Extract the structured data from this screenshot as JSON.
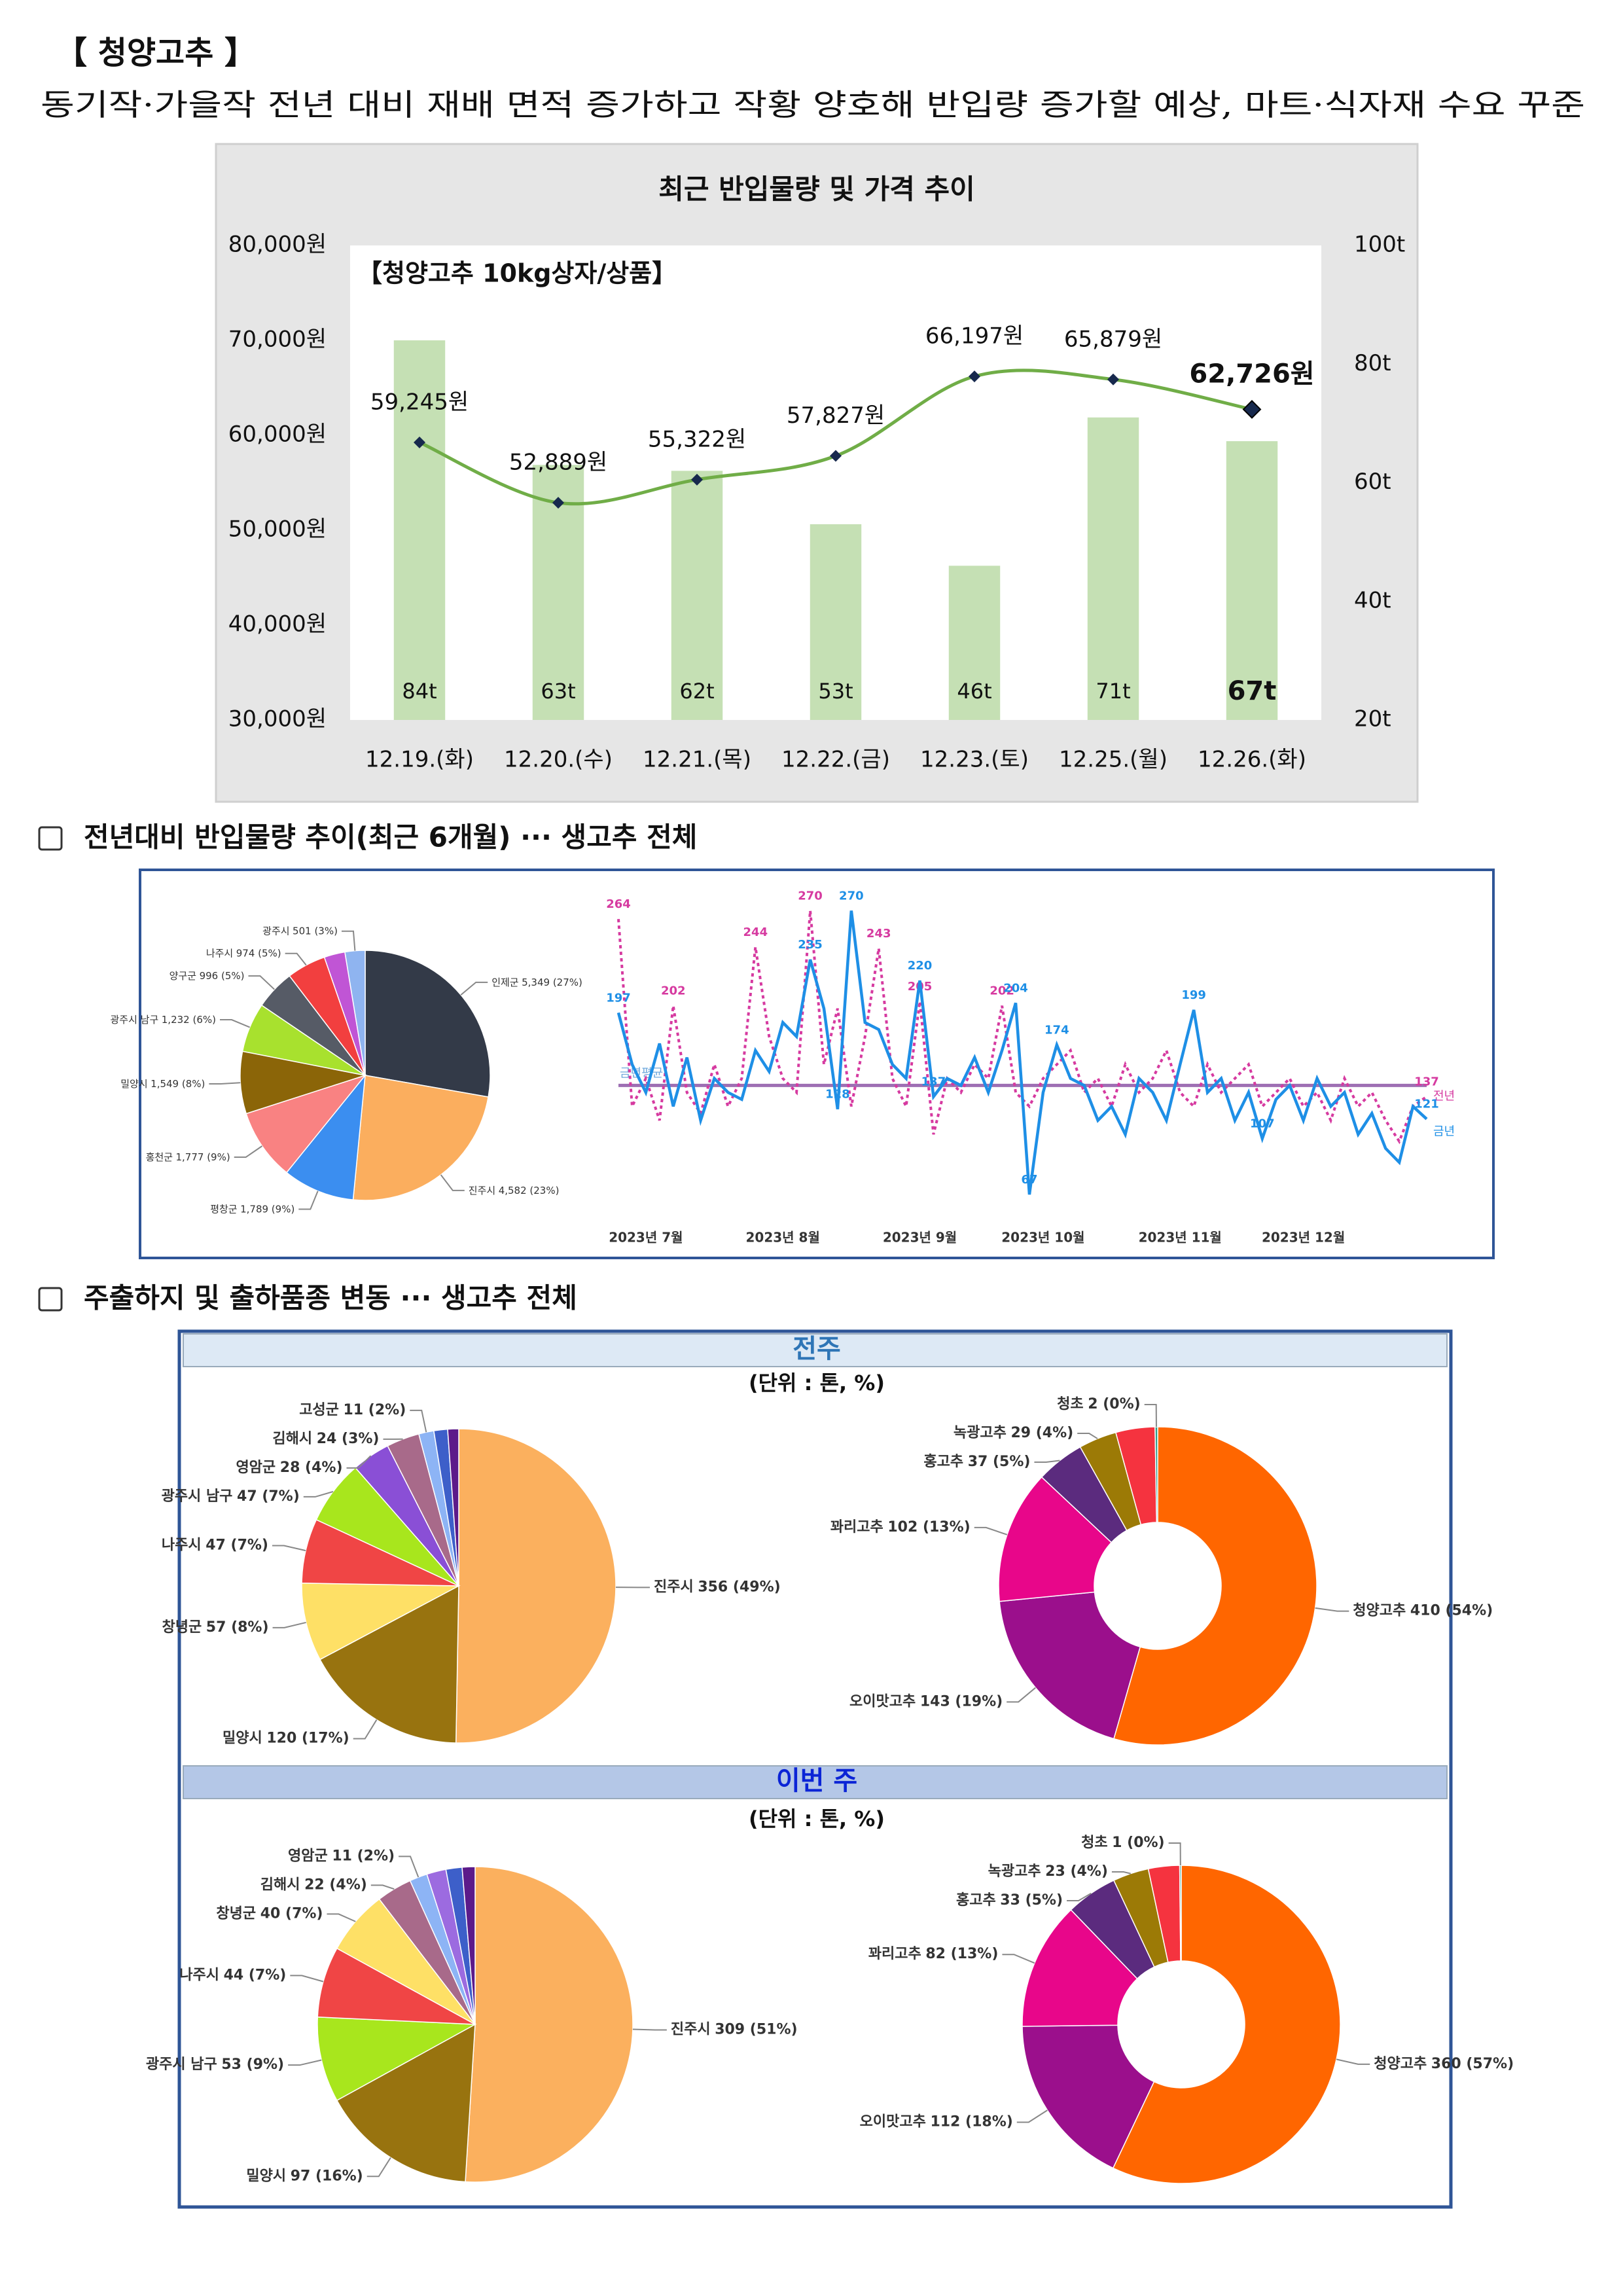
{
  "title": "【 청양고추 】",
  "subtitle": "동기작·가을작 전년 대비 재배 면적 증가하고 작황 양호해 반입량 증가할 예상, 마트·식자재 수요 꾸준",
  "sections": [
    "전년대비 반입물량 추이(최근 6개월) ··· 생고추 전체",
    "주출하지 및 출하품종 변동 ··· 생고추 전체"
  ],
  "panels": [
    {
      "heading": "전주",
      "unit": "(단위 : 톤, %)"
    },
    {
      "heading": "이번 주",
      "unit": "(단위 : 톤, %)"
    }
  ],
  "chart_data": [
    {
      "type": "combo",
      "title": "최근 반입물량 및 가격 추이",
      "annotation": "【청양고추 10kg상자/상품】",
      "categories": [
        "12.19.(화)",
        "12.20.(수)",
        "12.21.(목)",
        "12.22.(금)",
        "12.23.(토)",
        "12.25.(월)",
        "12.26.(화)"
      ],
      "series": [
        {
          "type": "bar",
          "axis": "y2",
          "color": "#c5e0b4",
          "values": [
            84,
            63,
            62,
            53,
            46,
            71,
            67
          ],
          "value_labels": [
            "84t",
            "63t",
            "62t",
            "53t",
            "46t",
            "71t",
            "67t"
          ]
        },
        {
          "type": "line",
          "color": "#70ad47",
          "marker_color": "#17294d",
          "values": [
            59245,
            52889,
            55322,
            57827,
            66197,
            65879,
            62726
          ],
          "value_labels": [
            "59,245원",
            "52,889원",
            "55,322원",
            "57,827원",
            "66,197원",
            "65,879원",
            "62,726원"
          ]
        }
      ],
      "ylim": [
        30000,
        80000
      ],
      "yticks": [
        {
          "value": 30000,
          "label": "30,000원"
        },
        {
          "value": 40000,
          "label": "40,000원"
        },
        {
          "value": 50000,
          "label": "50,000원"
        },
        {
          "value": 60000,
          "label": "60,000원"
        },
        {
          "value": 70000,
          "label": "70,000원"
        },
        {
          "value": 80000,
          "label": "80,000원"
        }
      ],
      "y2lim": [
        20,
        100
      ],
      "y2ticks": [
        {
          "value": 20,
          "label": "20t"
        },
        {
          "value": 40,
          "label": "40t"
        },
        {
          "value": 60,
          "label": "60t"
        },
        {
          "value": 80,
          "label": "80t"
        },
        {
          "value": 100,
          "label": "100t"
        }
      ]
    },
    {
      "type": "pie",
      "categories": [
        "인제군",
        "진주시",
        "평창군",
        "홍천군",
        "밀양시",
        "광주시 남구",
        "양구군",
        "나주시",
        null,
        "광주시"
      ],
      "values": [
        5349,
        4582,
        1789,
        1777,
        1549,
        1232,
        996,
        974,
        520,
        501
      ],
      "value_labels": [
        "5,349 (27%)",
        "4,582 (23%)",
        "1,789 (9%)",
        "1,777 (9%)",
        "1,549 (8%)",
        "1,232 (6%)",
        "996 (5%)",
        "974 (5%)",
        null,
        "501 (3%)"
      ],
      "colors": [
        "#333a48",
        "#fbae5e",
        "#3b8ef0",
        "#f98282",
        "#8b6508",
        "#a8e12e",
        "#565b66",
        "#f23f3f",
        "#c055d5",
        "#8fb4f0"
      ]
    },
    {
      "type": "line",
      "categories": [
        null,
        null,
        "2023년 7월",
        null,
        null,
        null,
        null,
        null,
        null,
        null,
        null,
        null,
        "2023년 8월",
        null,
        null,
        null,
        null,
        null,
        null,
        null,
        null,
        null,
        "2023년 9월",
        null,
        null,
        null,
        null,
        null,
        null,
        null,
        null,
        "2023년 10월",
        null,
        null,
        null,
        null,
        null,
        null,
        null,
        null,
        null,
        "2023년 11월",
        null,
        null,
        null,
        null,
        null,
        null,
        null,
        null,
        "2023년 12월",
        null,
        null,
        null,
        null,
        null,
        null,
        null,
        null,
        null
      ],
      "ylim": [
        60,
        280
      ],
      "reference_line": {
        "label": "금년평균",
        "value": 145,
        "color": "#9e6fb3"
      },
      "series": [
        {
          "name": "전년",
          "color": "#d63aa0",
          "dash": true,
          "labeled": [
            0,
            4,
            10,
            14,
            19,
            22,
            28,
            59
          ],
          "values": [
            264,
            130,
            150,
            120,
            202,
            140,
            125,
            160,
            130,
            150,
            244,
            180,
            150,
            140,
            270,
            160,
            200,
            130,
            180,
            243,
            150,
            130,
            205,
            110,
            150,
            140,
            160,
            150,
            202,
            140,
            130,
            150,
            160,
            170,
            140,
            150,
            130,
            160,
            140,
            150,
            170,
            140,
            130,
            160,
            140,
            150,
            160,
            130,
            140,
            150,
            130,
            140,
            120,
            150,
            130,
            140,
            120,
            105,
            130,
            137
          ]
        },
        {
          "name": "금년",
          "color": "#1e8fe6",
          "dash": false,
          "labeled": [
            0,
            14,
            16,
            17,
            22,
            23,
            29,
            30,
            32,
            42,
            47,
            59
          ],
          "values": [
            197,
            160,
            140,
            175,
            130,
            165,
            120,
            150,
            140,
            135,
            170,
            155,
            190,
            180,
            235,
            200,
            128,
            270,
            190,
            185,
            160,
            150,
            220,
            137,
            150,
            145,
            165,
            140,
            170,
            204,
            67,
            140,
            174,
            150,
            145,
            120,
            130,
            110,
            150,
            140,
            120,
            160,
            199,
            140,
            150,
            120,
            140,
            107,
            135,
            145,
            120,
            150,
            130,
            140,
            110,
            125,
            100,
            90,
            130,
            121
          ]
        }
      ]
    },
    {
      "type": "pie",
      "categories": [
        "진주시",
        "밀양시",
        "창녕군",
        "나주시",
        "광주시 남구",
        "영암군",
        "김해시",
        "고성군",
        null,
        null
      ],
      "values": [
        356,
        120,
        57,
        47,
        47,
        28,
        24,
        11,
        10,
        8
      ],
      "value_labels": [
        "356 (49%)",
        "120 (17%)",
        "57 (8%)",
        "47 (7%)",
        "47 (7%)",
        "28 (4%)",
        "24 (3%)",
        "11 (2%)",
        null,
        null
      ],
      "colors": [
        "#fbb05e",
        "#98730f",
        "#fee066",
        "#f04545",
        "#a8e61d",
        "#8a4fd6",
        "#a86a8a",
        "#8db4f5",
        "#3d5fc9",
        "#5c1a8a"
      ]
    },
    {
      "type": "donut",
      "categories": [
        "청양고추",
        "오이맛고추",
        "꽈리고추",
        "홍고추",
        "녹광고추",
        null,
        "청초"
      ],
      "values": [
        410,
        143,
        102,
        37,
        29,
        30,
        2
      ],
      "value_labels": [
        "410 (54%)",
        "143 (19%)",
        "102 (13%)",
        "37 (5%)",
        "29 (4%)",
        null,
        "2 (0%)"
      ],
      "colors": [
        "#ff6600",
        "#9b0f8c",
        "#e8068a",
        "#5b2b7e",
        "#9c7a06",
        "#f5333f",
        "#2e9e8a"
      ]
    },
    {
      "type": "pie",
      "categories": [
        "진주시",
        "밀양시",
        "광주시 남구",
        "나주시",
        "창녕군",
        "김해시",
        "영암군",
        null,
        null,
        null
      ],
      "values": [
        309,
        97,
        53,
        44,
        40,
        22,
        11,
        12,
        10,
        8
      ],
      "value_labels": [
        "309 (51%)",
        "97 (16%)",
        "53 (9%)",
        "44 (7%)",
        "40 (7%)",
        "22 (4%)",
        "11 (2%)",
        null,
        null,
        null
      ],
      "colors": [
        "#fbb05e",
        "#98730f",
        "#a8e61d",
        "#f04545",
        "#fee066",
        "#a86a8a",
        "#8db4f5",
        "#9c6be0",
        "#3d5fc9",
        "#5c1a8a"
      ]
    },
    {
      "type": "donut",
      "categories": [
        "청양고추",
        "오이맛고추",
        "꽈리고추",
        "홍고추",
        "녹광고추",
        null,
        "청초"
      ],
      "values": [
        360,
        112,
        82,
        33,
        23,
        20,
        1
      ],
      "value_labels": [
        "360 (57%)",
        "112 (18%)",
        "82 (13%)",
        "33 (5%)",
        "23 (4%)",
        null,
        "1 (0%)"
      ],
      "colors": [
        "#ff6600",
        "#9b0f8c",
        "#e8068a",
        "#5b2b7e",
        "#9c7a06",
        "#f5333f",
        "#2e9e8a"
      ]
    }
  ]
}
